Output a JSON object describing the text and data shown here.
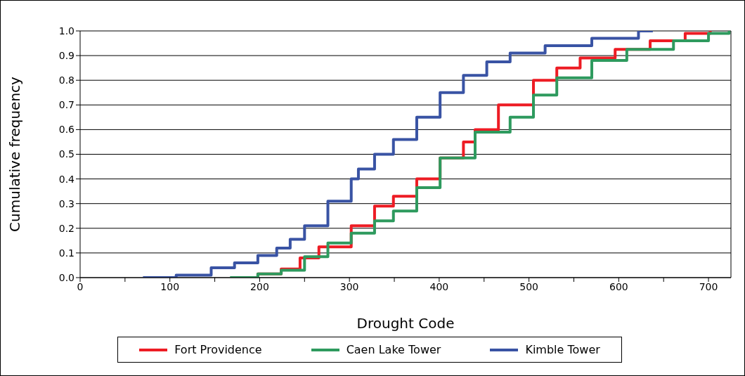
{
  "chart_data": {
    "type": "step",
    "xlabel": "Drought Code",
    "ylabel": "Cumulative frequency",
    "xlim": [
      0,
      725
    ],
    "ylim": [
      0,
      1
    ],
    "xticks": [
      0,
      {
        "value": 50,
        "label": null
      },
      100,
      {
        "value": 150,
        "label": null
      },
      200,
      {
        "value": 250,
        "label": null
      },
      300,
      {
        "value": 350,
        "label": null
      },
      400,
      {
        "value": 450,
        "label": null
      },
      500,
      {
        "value": 550,
        "label": null
      },
      600,
      {
        "value": 650,
        "label": null
      },
      700
    ],
    "yticks": [
      {
        "value": 0,
        "label": "0.0"
      },
      {
        "value": 0.1,
        "label": "0.1"
      },
      {
        "value": 0.2,
        "label": "0.2"
      },
      {
        "value": 0.3,
        "label": "0.3"
      },
      {
        "value": 0.4,
        "label": "0.4"
      },
      {
        "value": 0.5,
        "label": "0.5"
      },
      {
        "value": 0.6,
        "label": "0.6"
      },
      {
        "value": 0.7,
        "label": "0.7"
      },
      {
        "value": 0.8,
        "label": "0.8"
      },
      {
        "value": 0.9,
        "label": "0.9"
      },
      {
        "value": 1,
        "label": "1.0"
      }
    ],
    "grid": "y",
    "legend": "bottom",
    "marker": "none",
    "line_style": "solid",
    "series": [
      {
        "name": "Fort Providence",
        "color": "#ed1c24",
        "x": [
          177,
          198,
          224,
          245,
          266,
          302,
          328,
          349,
          375,
          401,
          427,
          440,
          466,
          505,
          531,
          557,
          596,
          635,
          674,
          702
        ],
        "values": [
          0,
          0.015,
          0.035,
          0.08,
          0.125,
          0.21,
          0.29,
          0.33,
          0.4,
          0.485,
          0.55,
          0.6,
          0.7,
          0.8,
          0.85,
          0.89,
          0.925,
          0.96,
          0.99,
          1
        ]
      },
      {
        "name": "Caen Lake Tower",
        "color": "#2e9a5e",
        "x": [
          167,
          198,
          224,
          250,
          276,
          302,
          328,
          349,
          375,
          401,
          440,
          479,
          505,
          531,
          570,
          609,
          661,
          700,
          723
        ],
        "values": [
          0,
          0.015,
          0.03,
          0.085,
          0.14,
          0.18,
          0.23,
          0.27,
          0.365,
          0.485,
          0.59,
          0.65,
          0.74,
          0.81,
          0.88,
          0.925,
          0.96,
          0.99,
          1
        ]
      },
      {
        "name": "Kimble Tower",
        "color": "#3953a4",
        "x": [
          70,
          107,
          146,
          172,
          198,
          219,
          234,
          250,
          276,
          302,
          310,
          328,
          349,
          375,
          401,
          427,
          453,
          479,
          518,
          570,
          622,
          638
        ],
        "values": [
          0,
          0.01,
          0.04,
          0.06,
          0.09,
          0.12,
          0.155,
          0.21,
          0.31,
          0.4,
          0.44,
          0.5,
          0.56,
          0.65,
          0.75,
          0.82,
          0.875,
          0.91,
          0.94,
          0.97,
          1,
          1
        ]
      }
    ]
  }
}
